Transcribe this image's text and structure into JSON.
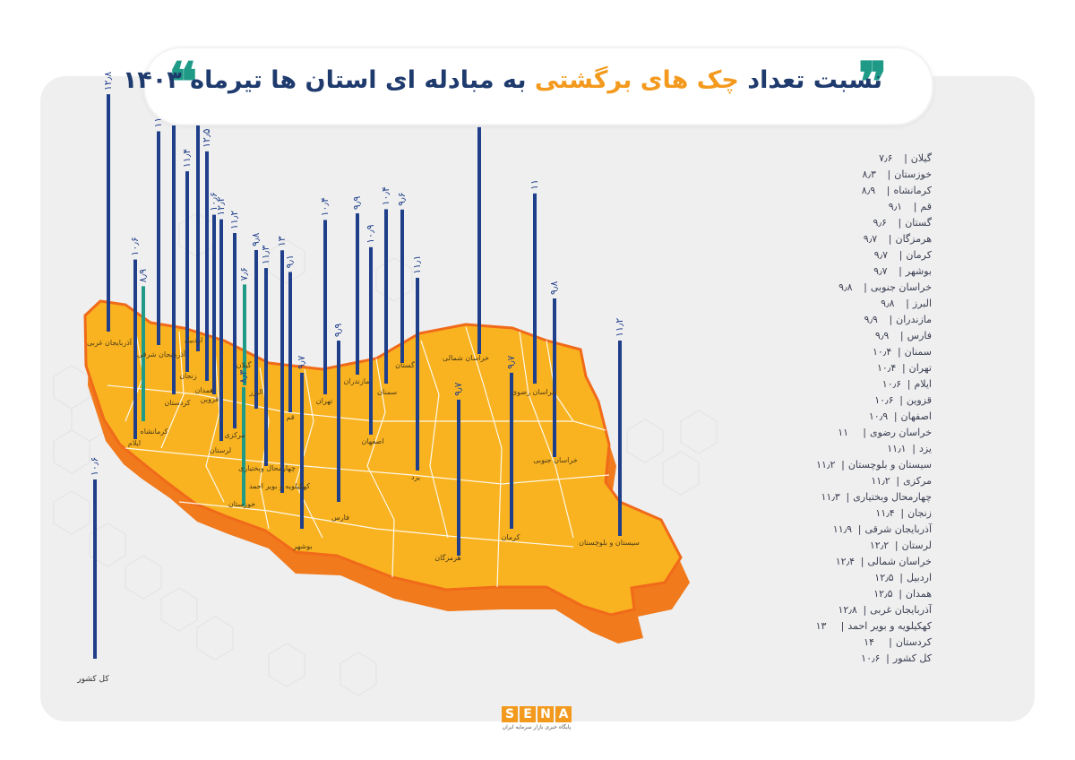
{
  "header": {
    "title_part1": "نسبت تعداد",
    "title_highlight": "چک های برگشتی",
    "title_part2": "به مبادله ای استان ها تیرماه ۱۴۰۳",
    "quote_open": "❞",
    "quote_close": "❝"
  },
  "colors": {
    "bar": "#1f3f8a",
    "bar_alt": "#1e9a86",
    "map_fill": "#f9b320",
    "map_edge": "#f06a1a",
    "panel": "#efefef"
  },
  "legend": [
    {
      "name": "گیلان",
      "value": "۷٫۶"
    },
    {
      "name": "خوزستان",
      "value": "۸٫۳"
    },
    {
      "name": "کرمانشاه",
      "value": "۸٫۹"
    },
    {
      "name": "قم",
      "value": "۹٫۱"
    },
    {
      "name": "گستان",
      "value": "۹٫۶"
    },
    {
      "name": "هرمزگان",
      "value": "۹٫۷"
    },
    {
      "name": "کرمان",
      "value": "۹٫۷"
    },
    {
      "name": "بوشهر",
      "value": "۹٫۷"
    },
    {
      "name": "خراسان جنوبی",
      "value": "۹٫۸"
    },
    {
      "name": "البرز",
      "value": "۹٫۸"
    },
    {
      "name": "مازندران",
      "value": "۹٫۹"
    },
    {
      "name": "فارس",
      "value": "۹٫۹"
    },
    {
      "name": "سمنان",
      "value": "۱۰٫۴"
    },
    {
      "name": "تهران",
      "value": "۱۰٫۴"
    },
    {
      "name": "ایلام",
      "value": "۱۰٫۶"
    },
    {
      "name": "قزوین",
      "value": "۱۰٫۶"
    },
    {
      "name": "اصفهان",
      "value": "۱۰٫۹"
    },
    {
      "name": "خراسان رضوی",
      "value": "۱۱"
    },
    {
      "name": "یزد",
      "value": "۱۱٫۱"
    },
    {
      "name": "سیستان و بلوچستان",
      "value": "۱۱٫۲"
    },
    {
      "name": "مرکزی",
      "value": "۱۱٫۲"
    },
    {
      "name": "چهارمحال وبختیاری",
      "value": "۱۱٫۳"
    },
    {
      "name": "زنجان",
      "value": "۱۱٫۴"
    },
    {
      "name": "آذربایجان شرقی",
      "value": "۱۱٫۹"
    },
    {
      "name": "لرستان",
      "value": "۱۲٫۲"
    },
    {
      "name": "خراسان شمالی",
      "value": "۱۲٫۴"
    },
    {
      "name": "اردبیل",
      "value": "۱۲٫۵"
    },
    {
      "name": "همدان",
      "value": "۱۲٫۵"
    },
    {
      "name": "آذربایجان غربی",
      "value": "۱۲٫۸"
    },
    {
      "name": "کهکیلویه و بویر احمد",
      "value": "۱۳"
    },
    {
      "name": "کردستان",
      "value": "۱۴"
    },
    {
      "name": "کل کشور",
      "value": "۱۰٫۶"
    }
  ],
  "chart_data": {
    "type": "bar",
    "title": "نسبت تعداد چک های برگشتی به مبادله ای استان ها تیرماه ۱۴۰۳",
    "unit": "percent",
    "provinces": [
      {
        "name": "آذربایجان غربی",
        "value": 12.8,
        "label": "۱۲٫۸"
      },
      {
        "name": "آذربایجان شرقی",
        "value": 11.9,
        "label": "۱۱٫۹"
      },
      {
        "name": "ایلام",
        "value": 10.6,
        "label": "۱۰٫۶"
      },
      {
        "name": "کرمانشاه",
        "value": 8.9,
        "label": "۸٫۹"
      },
      {
        "name": "کردستان",
        "value": 14.0,
        "label": "۱۴"
      },
      {
        "name": "زنجان",
        "value": 11.4,
        "label": "۱۱٫۴"
      },
      {
        "name": "اردبیل",
        "value": 12.5,
        "label": "۱۲٫۵"
      },
      {
        "name": "همدان",
        "value": 12.5,
        "label": "۱۲٫۵"
      },
      {
        "name": "قزوین",
        "value": 10.6,
        "label": "۱۰٫۶"
      },
      {
        "name": "لرستان",
        "value": 12.2,
        "label": "۱۲٫۲"
      },
      {
        "name": "گیلان",
        "value": 7.6,
        "label": "۷٫۶"
      },
      {
        "name": "مرکزی",
        "value": 11.2,
        "label": "۱۱٫۲"
      },
      {
        "name": "البرز",
        "value": 9.8,
        "label": "۹٫۸"
      },
      {
        "name": "کهکیلویه و بویر احمد",
        "value": 13.0,
        "label": "۱۳"
      },
      {
        "name": "خوزستان",
        "value": 8.3,
        "label": "۸٫۳"
      },
      {
        "name": "چهارمحال وبختیاری",
        "value": 11.3,
        "label": "۱۱٫۳"
      },
      {
        "name": "قم",
        "value": 9.1,
        "label": "۹٫۱"
      },
      {
        "name": "بوشهر",
        "value": 9.7,
        "label": "۹٫۷"
      },
      {
        "name": "تهران",
        "value": 10.4,
        "label": "۱۰٫۴"
      },
      {
        "name": "فارس",
        "value": 9.9,
        "label": "۹٫۹"
      },
      {
        "name": "مازندران",
        "value": 9.9,
        "label": "۹٫۹"
      },
      {
        "name": "اصفهان",
        "value": 10.9,
        "label": "۱۰٫۹"
      },
      {
        "name": "سمنان",
        "value": 10.4,
        "label": "۱۰٫۴"
      },
      {
        "name": "گستان",
        "value": 9.6,
        "label": "۹٫۶"
      },
      {
        "name": "یزد",
        "value": 11.1,
        "label": "۱۱٫۱"
      },
      {
        "name": "هرمزگان",
        "value": 9.7,
        "label": "۹٫۷"
      },
      {
        "name": "خراسان شمالی",
        "value": 12.4,
        "label": "۱۲٫۴"
      },
      {
        "name": "کرمان",
        "value": 9.7,
        "label": "۹٫۷"
      },
      {
        "name": "خراسان رضوی",
        "value": 11.0,
        "label": "۱۱"
      },
      {
        "name": "خراسان جنوبی",
        "value": 9.8,
        "label": "۹٫۸"
      },
      {
        "name": "سیستان و بلوچستان",
        "value": 11.2,
        "label": "۱۱٫۲"
      },
      {
        "name": "کل کشور",
        "value": 10.6,
        "label": "۱۰٫۶"
      }
    ]
  },
  "footer": {
    "logo_letters": [
      "S",
      "E",
      "N",
      "A"
    ],
    "logo_subtitle": "پایگاه خبری بازار سرمایه ایران"
  }
}
